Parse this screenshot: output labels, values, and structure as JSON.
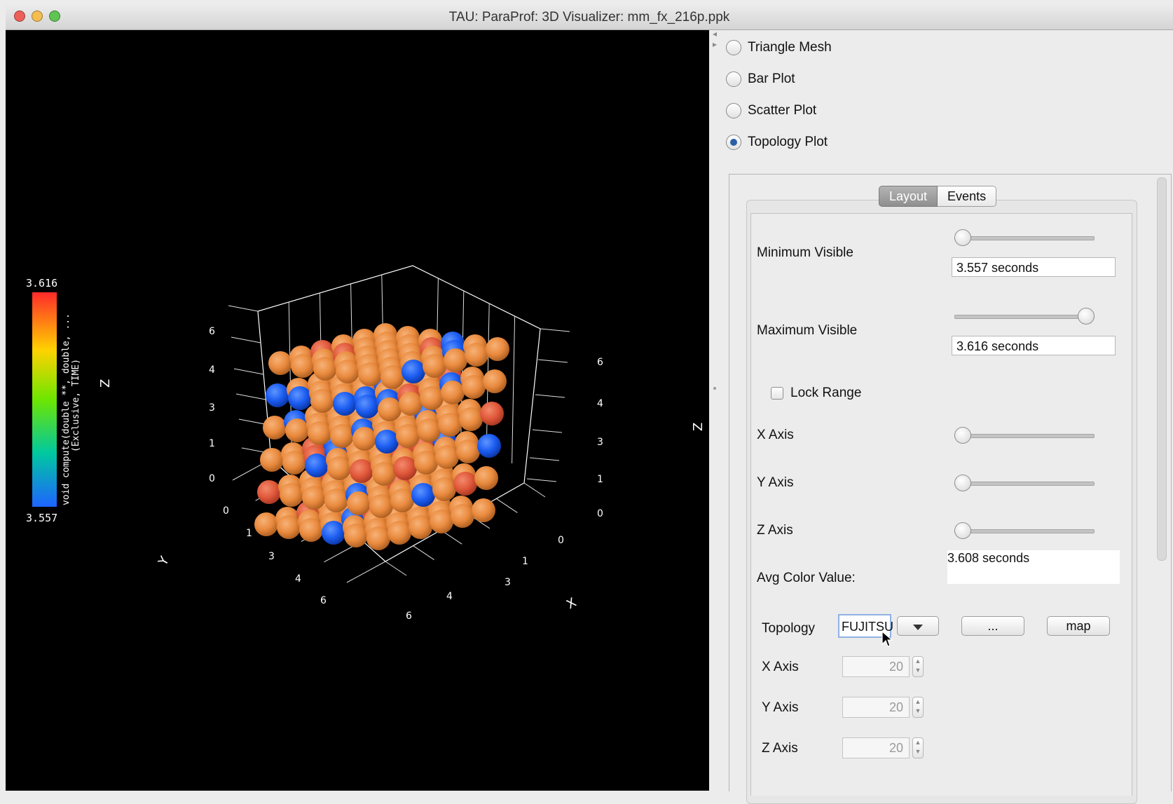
{
  "window": {
    "title": "TAU: ParaProf: 3D Visualizer: mm_fx_216p.ppk",
    "traffic_lights": [
      "#ee5f57",
      "#f5bd4f",
      "#5fc454"
    ]
  },
  "viewport": {
    "legend": {
      "max_label": "3.616",
      "min_label": "3.557",
      "metric_line1": "void compute(double **, double, ...",
      "metric_line2": "(Exclusive, TIME)",
      "gradient": [
        "#ff2a2a",
        "#ffd200",
        "#6de600",
        "#00c8a0",
        "#1e64ff"
      ]
    },
    "axis_letters": {
      "z_left": "Z",
      "z_right": "Z",
      "y": "Y",
      "x": "X"
    },
    "left_ticks": [
      "6",
      "4",
      "3",
      "1",
      "0"
    ],
    "right_ticks": [
      "6",
      "4",
      "3",
      "1",
      "0"
    ],
    "y_ticks": [
      "0",
      "1",
      "3",
      "4",
      "6"
    ],
    "x_ticks": [
      "0",
      "1",
      "3",
      "4",
      "6"
    ],
    "sphere_colors": {
      "orange": "#e98a3e",
      "red": "#e0583a",
      "blue": "#1b5cf0"
    }
  },
  "panel": {
    "plot_types": [
      {
        "label": "Triangle Mesh",
        "selected": false
      },
      {
        "label": "Bar Plot",
        "selected": false
      },
      {
        "label": "Scatter Plot",
        "selected": false
      },
      {
        "label": "Topology Plot",
        "selected": true
      }
    ],
    "tabs": {
      "layout": "Layout",
      "events": "Events"
    },
    "layout": {
      "min_visible": {
        "label": "Minimum Visible",
        "value": "3.557 seconds",
        "slider_position": 0.0
      },
      "max_visible": {
        "label": "Maximum Visible",
        "value": "3.616 seconds",
        "slider_position": 1.0
      },
      "lock_range": {
        "label": "Lock Range",
        "checked": false
      },
      "axis_sliders": [
        {
          "label": "X Axis",
          "position": 0.0
        },
        {
          "label": "Y Axis",
          "position": 0.0
        },
        {
          "label": "Z Axis",
          "position": 0.0
        }
      ],
      "avg_color": {
        "label": "Avg Color Value:",
        "value": "3.608 seconds"
      },
      "topology": {
        "label": "Topology",
        "selected": "FUJITSU",
        "browse_label": "...",
        "map_label": "map"
      },
      "dims": [
        {
          "label": "X Axis",
          "value": "20"
        },
        {
          "label": "Y Axis",
          "value": "20"
        },
        {
          "label": "Z Axis",
          "value": "20"
        }
      ]
    }
  }
}
